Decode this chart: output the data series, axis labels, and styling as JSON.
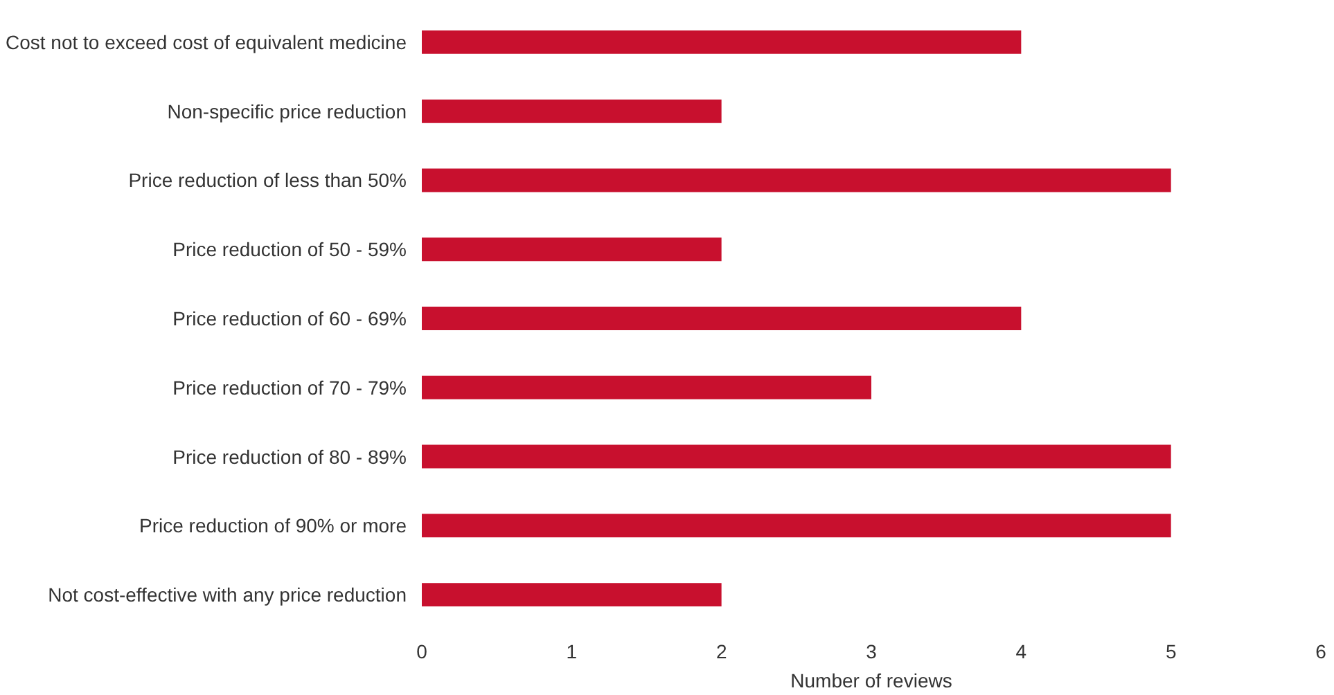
{
  "chart_data": {
    "type": "bar",
    "orientation": "horizontal",
    "xlabel": "Number of reviews",
    "categories": [
      "Cost not to exceed cost of equivalent medicine",
      "Non-specific price reduction",
      "Price reduction of less than 50%",
      "Price reduction of 50 - 59%",
      "Price reduction of 60 - 69%",
      "Price reduction of 70 - 79%",
      "Price reduction of 80 - 89%",
      "Price reduction of 90% or more",
      "Not cost-effective with any price reduction"
    ],
    "values": [
      4,
      2,
      5,
      2,
      4,
      3,
      5,
      5,
      2
    ],
    "color": "#c8102e",
    "xlim": [
      0,
      6
    ],
    "xticks": [
      0,
      1,
      2,
      3,
      4,
      5,
      6
    ],
    "grid": false
  }
}
